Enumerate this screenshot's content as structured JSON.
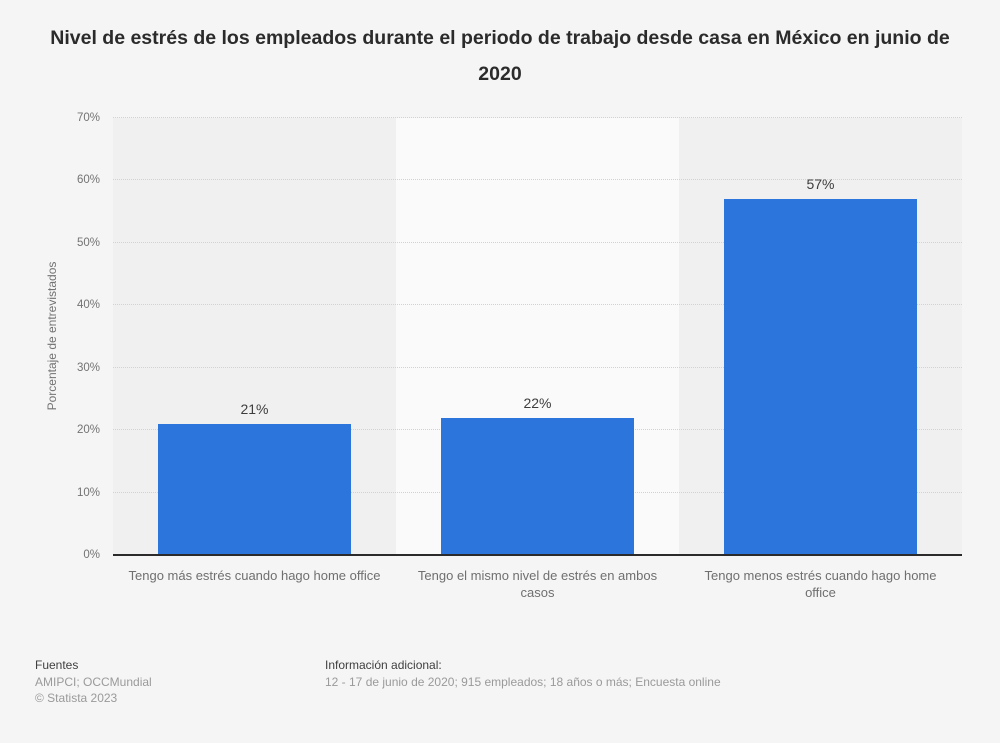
{
  "title": "Nivel de estrés de los empleados durante el periodo de trabajo desde casa en México en junio de 2020",
  "chart_data": {
    "type": "bar",
    "categories": [
      "Tengo más estrés cuando hago home office",
      "Tengo el mismo nivel de estrés en ambos casos",
      "Tengo menos estrés cuando hago home office"
    ],
    "values": [
      21,
      22,
      57
    ],
    "value_labels": [
      "21%",
      "22%",
      "57%"
    ],
    "title": "Nivel de estrés de los empleados durante el periodo de trabajo desde casa en México en junio de 2020",
    "xlabel": "",
    "ylabel": "Porcentaje de entrevistados",
    "ylim": [
      0,
      70
    ],
    "ytick_step": 10,
    "yticks": [
      "0%",
      "10%",
      "20%",
      "30%",
      "40%",
      "50%",
      "60%",
      "70%"
    ],
    "grid": "horizontal-dotted",
    "legend": "none",
    "bar_color": "#2b75dd",
    "band_colors": [
      "#f0f0f0",
      "#fafafa",
      "#f0f0f0"
    ],
    "axis_color": "#2b2b2b"
  },
  "footer": {
    "sources_label": "Fuentes",
    "sources": "AMIPCI; OCCMundial",
    "copyright": "© Statista 2023",
    "additional_info_label": "Información adicional:",
    "additional_info": "12 - 17 de junio de 2020; 915 empleados; 18 años o más; Encuesta online"
  }
}
